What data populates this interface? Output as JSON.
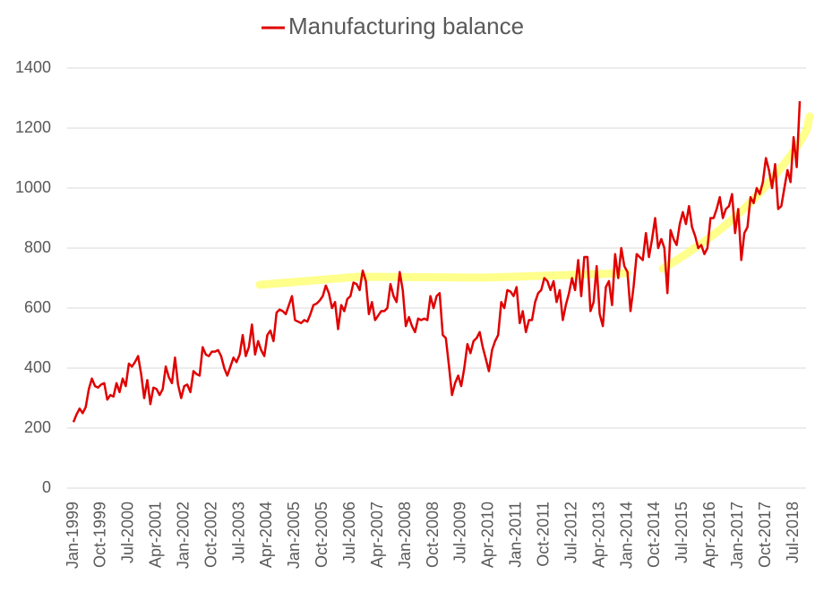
{
  "chart_data": {
    "type": "line",
    "categories": [
      "Jan-1999",
      null,
      null,
      null,
      null,
      null,
      null,
      null,
      null,
      "Oct-1999",
      null,
      null,
      null,
      null,
      null,
      null,
      null,
      null,
      "Jul-2000",
      null,
      null,
      null,
      null,
      null,
      null,
      null,
      null,
      "Apr-2001",
      null,
      null,
      null,
      null,
      null,
      null,
      null,
      null,
      "Jan-2002",
      null,
      null,
      null,
      null,
      null,
      null,
      null,
      null,
      "Oct-2002",
      null,
      null,
      null,
      null,
      null,
      null,
      null,
      null,
      "Jul-2003",
      null,
      null,
      null,
      null,
      null,
      null,
      null,
      null,
      "Apr-2004",
      null,
      null,
      null,
      null,
      null,
      null,
      null,
      null,
      "Jan-2005",
      null,
      null,
      null,
      null,
      null,
      null,
      null,
      null,
      "Oct-2005",
      null,
      null,
      null,
      null,
      null,
      null,
      null,
      null,
      "Jul-2006",
      null,
      null,
      null,
      null,
      null,
      null,
      null,
      null,
      "Apr-2007",
      null,
      null,
      null,
      null,
      null,
      null,
      null,
      null,
      "Jan-2008",
      null,
      null,
      null,
      null,
      null,
      null,
      null,
      null,
      "Oct-2008",
      null,
      null,
      null,
      null,
      null,
      null,
      null,
      null,
      "Jul-2009",
      null,
      null,
      null,
      null,
      null,
      null,
      null,
      null,
      "Apr-2010",
      null,
      null,
      null,
      null,
      null,
      null,
      null,
      null,
      "Jan-2011",
      null,
      null,
      null,
      null,
      null,
      null,
      null,
      null,
      "Oct-2011",
      null,
      null,
      null,
      null,
      null,
      null,
      null,
      null,
      "Jul-2012",
      null,
      null,
      null,
      null,
      null,
      null,
      null,
      null,
      "Apr-2013",
      null,
      null,
      null,
      null,
      null,
      null,
      null,
      null,
      "Jan-2014",
      null,
      null,
      null,
      null,
      null,
      null,
      null,
      null,
      "Oct-2014",
      null,
      null,
      null,
      null,
      null,
      null,
      null,
      null,
      "Jul-2015",
      null,
      null,
      null,
      null,
      null,
      null,
      null,
      null,
      "Apr-2016",
      null,
      null,
      null,
      null,
      null,
      null,
      null,
      null,
      "Jan-2017",
      null,
      null,
      null,
      null,
      null,
      null,
      null,
      null,
      "Oct-2017",
      null,
      null,
      null,
      null,
      null,
      null,
      null,
      null,
      "Jul-2018",
      null,
      null
    ],
    "series": [
      {
        "name": "Manufacturing balance",
        "color": "#e00000",
        "values": [
          220,
          245,
          265,
          250,
          270,
          330,
          365,
          340,
          335,
          345,
          350,
          295,
          310,
          305,
          350,
          320,
          365,
          340,
          415,
          405,
          420,
          440,
          380,
          300,
          360,
          280,
          335,
          330,
          310,
          330,
          405,
          370,
          350,
          435,
          345,
          300,
          340,
          345,
          320,
          390,
          380,
          375,
          470,
          445,
          440,
          455,
          455,
          460,
          440,
          400,
          375,
          405,
          435,
          420,
          445,
          510,
          440,
          470,
          545,
          445,
          490,
          460,
          440,
          510,
          525,
          490,
          585,
          595,
          590,
          580,
          610,
          640,
          560,
          555,
          550,
          560,
          555,
          580,
          610,
          615,
          625,
          640,
          675,
          650,
          600,
          620,
          530,
          610,
          590,
          630,
          640,
          685,
          680,
          660,
          725,
          690,
          580,
          620,
          560,
          575,
          590,
          590,
          600,
          680,
          640,
          620,
          720,
          660,
          540,
          570,
          540,
          520,
          565,
          560,
          565,
          560,
          640,
          600,
          640,
          650,
          510,
          500,
          410,
          310,
          350,
          375,
          340,
          400,
          480,
          450,
          490,
          500,
          520,
          470,
          430,
          390,
          460,
          490,
          510,
          620,
          600,
          660,
          655,
          640,
          670,
          550,
          590,
          520,
          560,
          560,
          620,
          650,
          660,
          700,
          690,
          660,
          690,
          620,
          660,
          560,
          610,
          650,
          700,
          660,
          760,
          640,
          770,
          770,
          590,
          620,
          740,
          580,
          540,
          670,
          690,
          610,
          780,
          700,
          800,
          740,
          720,
          590,
          670,
          780,
          770,
          760,
          850,
          770,
          830,
          900,
          800,
          830,
          800,
          650,
          860,
          830,
          810,
          880,
          920,
          880,
          940,
          870,
          840,
          800,
          810,
          780,
          800,
          900,
          900,
          930,
          970,
          900,
          930,
          940,
          980,
          850,
          930,
          760,
          850,
          870,
          970,
          950,
          1000,
          980,
          1020,
          1100,
          1060,
          1000,
          1080,
          930,
          940,
          1000,
          1060,
          1020,
          1170,
          1070,
          1290
        ]
      }
    ],
    "ylim": [
      0,
      1400
    ],
    "yticks": [
      0,
      200,
      400,
      600,
      800,
      1000,
      1200,
      1400
    ],
    "grid": true,
    "legend": "top"
  }
}
